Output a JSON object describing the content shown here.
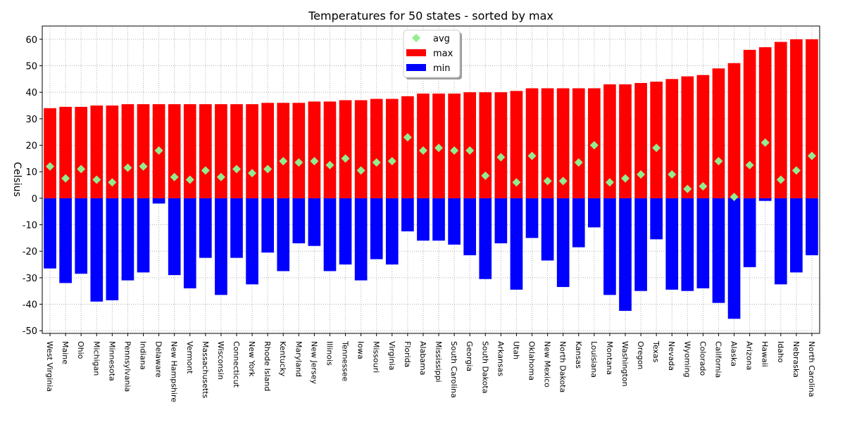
{
  "chart_data": {
    "type": "bar",
    "title": "Temperatures for 50 states - sorted by max",
    "ylabel": "Celsius",
    "xlabel": "",
    "ylim": [
      -51,
      65
    ],
    "yticks": [
      -50,
      -40,
      -30,
      -20,
      -10,
      0,
      10,
      20,
      30,
      40,
      50,
      60
    ],
    "grid": true,
    "legend_position": "top-center",
    "categories": [
      "West Virginia",
      "Maine",
      "Ohio",
      "Michigan",
      "Minnesota",
      "Pennsylvania",
      "Indiana",
      "Delaware",
      "New Hampshire",
      "Vermont",
      "Massachusetts",
      "Wisconsin",
      "Connecticut",
      "New York",
      "Rhode Island",
      "Kentucky",
      "Maryland",
      "New Jersey",
      "Illinois",
      "Tennessee",
      "Iowa",
      "Missouri",
      "Virginia",
      "Florida",
      "Alabama",
      "Mississippi",
      "South Carolina",
      "Georgia",
      "South Dakota",
      "Arkansas",
      "Utah",
      "Oklahoma",
      "New Mexico",
      "North Dakota",
      "Kansas",
      "Louisiana",
      "Montana",
      "Washington",
      "Oregon",
      "Texas",
      "Nevada",
      "Wyoming",
      "Colorado",
      "California",
      "Alaska",
      "Arizona",
      "Hawaii",
      "Idaho",
      "Nebraska",
      "North Carolina"
    ],
    "series": [
      {
        "name": "max",
        "color": "#ff0000",
        "values": [
          34,
          34.5,
          34.5,
          35,
          35,
          35.5,
          35.5,
          35.5,
          35.5,
          35.5,
          35.5,
          35.5,
          35.5,
          35.5,
          36,
          36,
          36,
          36.5,
          36.5,
          37,
          37,
          37.5,
          37.5,
          38.5,
          39.5,
          39.5,
          39.5,
          40,
          40,
          40,
          40.5,
          41.5,
          41.5,
          41.5,
          41.5,
          41.5,
          43,
          43,
          43.5,
          44,
          45,
          46,
          46.5,
          49,
          51,
          56,
          57,
          59,
          60,
          60
        ]
      },
      {
        "name": "min",
        "color": "#0000ff",
        "values": [
          -26.5,
          -32,
          -28.5,
          -39,
          -38.5,
          -31,
          -28,
          -2,
          -29,
          -34,
          -22.5,
          -36.5,
          -22.5,
          -32.5,
          -20.5,
          -27.5,
          -17,
          -18,
          -27.5,
          -25,
          -31,
          -23,
          -25,
          -12.5,
          -16,
          -16,
          -17.5,
          -21.5,
          -30.5,
          -17,
          -34.5,
          -15,
          -23.5,
          -33.5,
          -18.5,
          -11,
          -36.5,
          -42.5,
          -35,
          -15.5,
          -34.5,
          -35,
          -34,
          -39.5,
          -45.5,
          -26,
          -1,
          -32.5,
          -28,
          -21.5
        ]
      },
      {
        "name": "avg",
        "color": "#90ee90",
        "values": [
          12,
          7.5,
          11,
          7,
          6,
          11.5,
          12,
          18,
          8,
          7,
          10.5,
          8,
          11,
          9.5,
          11,
          14,
          13.5,
          14,
          12.5,
          15,
          10.5,
          13.5,
          14,
          23,
          18,
          19,
          18,
          18,
          8.5,
          15.5,
          6,
          16,
          6.5,
          6.5,
          13.5,
          20,
          6,
          7.5,
          9,
          19,
          9,
          3.5,
          4.5,
          14,
          0.5,
          12.5,
          21,
          7,
          10.5,
          16
        ]
      }
    ],
    "legend": [
      {
        "label": "avg",
        "color": "#90ee90",
        "marker": "diamond"
      },
      {
        "label": "max",
        "color": "#ff0000",
        "marker": "rect"
      },
      {
        "label": "min",
        "color": "#0000ff",
        "marker": "rect"
      }
    ]
  }
}
